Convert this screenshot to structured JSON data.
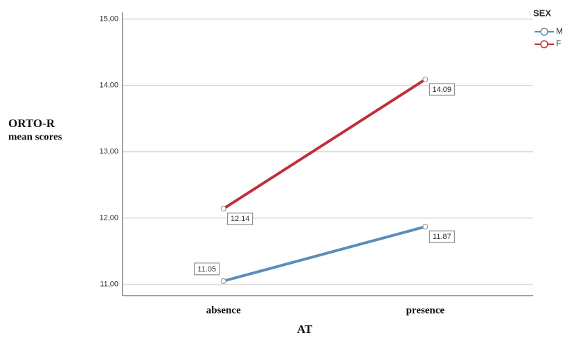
{
  "chart_data": {
    "type": "line",
    "xlabel": "AT",
    "ylabel": [
      "ORTO-R",
      "mean scores"
    ],
    "legend_title": "SEX",
    "legend": "top-right",
    "grid": true,
    "categories": [
      "absence",
      "presence"
    ],
    "series": [
      {
        "name": "M",
        "color": "#5b8db8",
        "values": [
          11.05,
          11.87
        ]
      },
      {
        "name": "F",
        "color": "#c0303c",
        "values": [
          12.14,
          14.09
        ]
      }
    ],
    "ylim": [
      10.83,
      15.1
    ],
    "yticks": [
      {
        "value": 11,
        "label": "11,00"
      },
      {
        "value": 12,
        "label": "12,00"
      },
      {
        "value": 13,
        "label": "13,00"
      },
      {
        "value": 14,
        "label": "14,00"
      },
      {
        "value": 15,
        "label": "15,00"
      }
    ]
  }
}
